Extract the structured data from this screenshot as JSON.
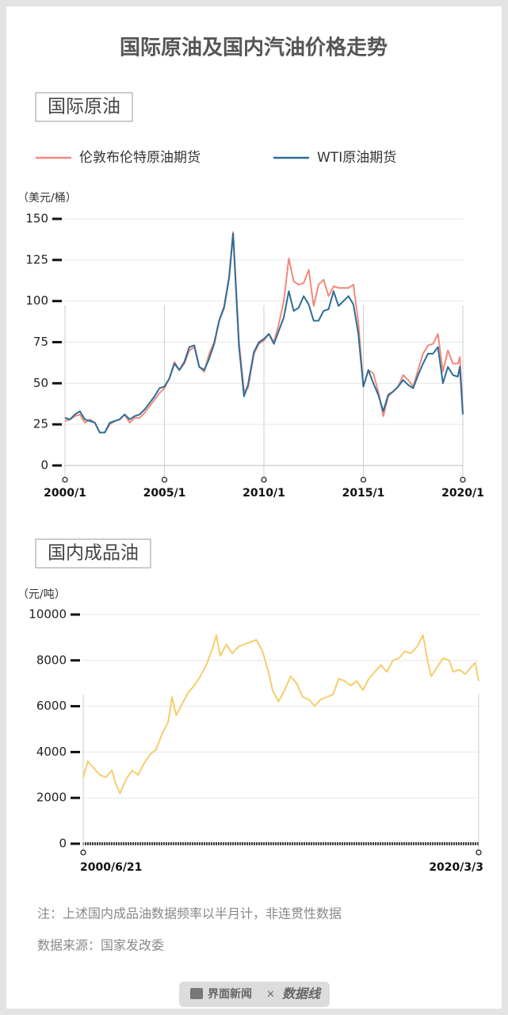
{
  "title": "国际原油及国内汽油价格走势",
  "chart_data": [
    {
      "type": "line",
      "title": "国际原油",
      "y_label": "（美元/桶）",
      "x": [
        2000.0,
        2000.25,
        2000.5,
        2000.75,
        2001.0,
        2001.25,
        2001.5,
        2001.75,
        2002.0,
        2002.25,
        2002.5,
        2002.75,
        2003.0,
        2003.25,
        2003.5,
        2003.75,
        2004.0,
        2004.25,
        2004.5,
        2004.75,
        2005.0,
        2005.25,
        2005.5,
        2005.75,
        2006.0,
        2006.25,
        2006.5,
        2006.75,
        2007.0,
        2007.25,
        2007.5,
        2007.75,
        2008.0,
        2008.25,
        2008.45,
        2008.55,
        2008.75,
        2009.0,
        2009.2,
        2009.5,
        2009.75,
        2010.0,
        2010.25,
        2010.5,
        2010.75,
        2011.0,
        2011.25,
        2011.5,
        2011.75,
        2012.0,
        2012.25,
        2012.5,
        2012.75,
        2013.0,
        2013.25,
        2013.5,
        2013.75,
        2014.0,
        2014.25,
        2014.5,
        2014.75,
        2015.0,
        2015.25,
        2015.5,
        2015.75,
        2016.0,
        2016.25,
        2016.5,
        2016.75,
        2017.0,
        2017.25,
        2017.5,
        2017.75,
        2018.0,
        2018.25,
        2018.5,
        2018.75,
        2019.0,
        2019.25,
        2019.5,
        2019.75,
        2019.85,
        2020.0
      ],
      "series": [
        {
          "name": "伦敦布伦特原油期货",
          "color": "#f0897c",
          "values": [
            27,
            28,
            30,
            31,
            26,
            28,
            26,
            20,
            20,
            25,
            27,
            28,
            31,
            26,
            29,
            29,
            32,
            36,
            40,
            44,
            47,
            53,
            63,
            58,
            62,
            70,
            72,
            60,
            57,
            68,
            75,
            88,
            97,
            115,
            142,
            120,
            75,
            45,
            47,
            68,
            74,
            76,
            80,
            75,
            86,
            100,
            126,
            112,
            110,
            111,
            119,
            97,
            110,
            113,
            103,
            109,
            108,
            108,
            108,
            110,
            87,
            48,
            58,
            56,
            45,
            30,
            42,
            45,
            48,
            55,
            52,
            48,
            58,
            68,
            73,
            74,
            80,
            57,
            70,
            62,
            62,
            66,
            33
          ]
        },
        {
          "name": "WTI原油期货",
          "color": "#2d6e98",
          "values": [
            29,
            28,
            31,
            33,
            28,
            27,
            26,
            20,
            20,
            26,
            27,
            28,
            31,
            28,
            30,
            31,
            34,
            38,
            42,
            47,
            48,
            53,
            62,
            58,
            63,
            72,
            73,
            60,
            58,
            65,
            74,
            88,
            96,
            114,
            141,
            118,
            72,
            42,
            49,
            69,
            75,
            77,
            80,
            74,
            82,
            90,
            106,
            94,
            96,
            103,
            98,
            88,
            88,
            94,
            95,
            106,
            97,
            100,
            103,
            98,
            80,
            48,
            58,
            50,
            43,
            33,
            43,
            45,
            48,
            52,
            49,
            47,
            55,
            62,
            68,
            68,
            72,
            50,
            60,
            55,
            54,
            60,
            31
          ]
        }
      ],
      "xlim": [
        2000,
        2020
      ],
      "xticks": [
        {
          "value": 2000,
          "label": "2000/1"
        },
        {
          "value": 2005,
          "label": "2005/1"
        },
        {
          "value": 2010,
          "label": "2010/1"
        },
        {
          "value": 2015,
          "label": "2015/1"
        },
        {
          "value": 2020,
          "label": "2020/1"
        }
      ],
      "ylim": [
        0,
        150
      ],
      "yticks": [
        0,
        25,
        50,
        75,
        100,
        125,
        150
      ],
      "grid": true
    },
    {
      "type": "line",
      "title": "国内成品油",
      "y_label": "（元/吨）",
      "x": [
        2000.47,
        2000.7,
        2001.0,
        2001.3,
        2001.6,
        2001.9,
        2002.1,
        2002.3,
        2002.6,
        2002.9,
        2003.2,
        2003.5,
        2003.8,
        2004.1,
        2004.4,
        2004.7,
        2004.9,
        2005.1,
        2005.4,
        2005.7,
        2006.0,
        2006.3,
        2006.6,
        2006.9,
        2007.1,
        2007.3,
        2007.6,
        2007.9,
        2008.2,
        2008.5,
        2008.8,
        2009.1,
        2009.4,
        2009.7,
        2009.9,
        2010.2,
        2010.5,
        2010.8,
        2011.1,
        2011.4,
        2011.7,
        2012.0,
        2012.3,
        2012.6,
        2012.9,
        2013.2,
        2013.5,
        2013.8,
        2014.1,
        2014.4,
        2014.7,
        2015.0,
        2015.3,
        2015.6,
        2015.9,
        2016.2,
        2016.5,
        2016.8,
        2017.1,
        2017.4,
        2017.6,
        2017.8,
        2018.1,
        2018.4,
        2018.7,
        2018.9,
        2019.2,
        2019.5,
        2019.8,
        2020.0,
        2020.17
      ],
      "color": "#f5cd6c",
      "values": [
        2900,
        3600,
        3300,
        3000,
        2900,
        3200,
        2600,
        2200,
        2800,
        3200,
        3000,
        3500,
        3900,
        4100,
        4800,
        5300,
        6400,
        5600,
        6100,
        6600,
        6900,
        7300,
        7800,
        8500,
        9100,
        8200,
        8700,
        8300,
        8600,
        8700,
        8800,
        8900,
        8400,
        7500,
        6700,
        6200,
        6700,
        7300,
        7000,
        6400,
        6300,
        6000,
        6300,
        6400,
        6500,
        7200,
        7100,
        6900,
        7100,
        6700,
        7200,
        7500,
        7800,
        7500,
        8000,
        8100,
        8400,
        8300,
        8600,
        9100,
        8100,
        7300,
        7700,
        8100,
        8000,
        7500,
        7600,
        7400,
        7700,
        7900,
        7100
      ],
      "xlim": [
        2000.47,
        2020.17
      ],
      "xticks": [
        {
          "value": 2000.47,
          "label": "2000/6/21"
        },
        {
          "value": 2020.17,
          "label": "2020/3/3"
        }
      ],
      "ylim": [
        0,
        10000
      ],
      "yticks": [
        0,
        2000,
        4000,
        6000,
        8000,
        10000
      ],
      "grid": true
    }
  ],
  "notes": [
    "注：上述国内成品油数据频率以半月计，非连贯性数据",
    "数据来源：国家发改委"
  ],
  "footer": {
    "brand": "界面新闻",
    "separator": "×",
    "partner": "数据线"
  }
}
